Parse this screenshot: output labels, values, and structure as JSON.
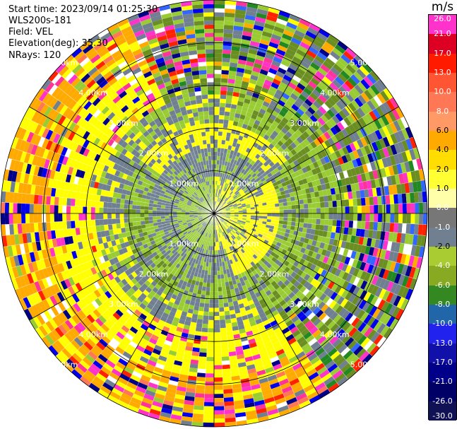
{
  "header": {
    "start_time": "Start time: 2023/09/14 01:25:30",
    "instrument": "WLS200s-181",
    "field": "Field: VEL",
    "elevation": "Elevation(deg): 35.30",
    "nrays": "NRays: 120"
  },
  "colorbar": {
    "title": "m/s",
    "labels": [
      "26.0",
      "21.0",
      "17.0",
      "13.0",
      "10.0",
      "8.0",
      "6.0",
      "4.0",
      "2.0",
      "1.0",
      "0.0",
      "-1.0",
      "-2.0",
      "-4.0",
      "-6.0",
      "-8.0",
      "-10.0",
      "-13.0",
      "-17.0",
      "-21.0",
      "-26.0",
      "-30.0"
    ],
    "colors": [
      "#ff33cc",
      "#dd0022",
      "#ff1a00",
      "#ff5533",
      "#ff7755",
      "#ff9966",
      "#ffaa00",
      "#ffdd00",
      "#ffff33",
      "#ffffaa",
      "#777777",
      "#708090",
      "#aacc33",
      "#88aa22",
      "#338822",
      "#2266aa",
      "#2222ee",
      "#1111aa",
      "#000088",
      "#000066",
      "#111155"
    ]
  },
  "chart_data": {
    "type": "heatmap",
    "projection": "polar PPI",
    "field": "VEL",
    "units": "m/s",
    "nrays": 120,
    "elevation_deg": 35.3,
    "range_rings_km": [
      1.0,
      2.0,
      3.0,
      4.0,
      5.0
    ],
    "ring_labels": [
      "1.00km",
      "2.00km",
      "3.00km",
      "4.00km",
      "5.00km"
    ],
    "spokes_deg": [
      0,
      30,
      60,
      90,
      120,
      150,
      180,
      210,
      240,
      270,
      300,
      330
    ],
    "color_levels": [
      26.0,
      21.0,
      17.0,
      13.0,
      10.0,
      8.0,
      6.0,
      4.0,
      2.0,
      1.0,
      0.0,
      -1.0,
      -2.0,
      -4.0,
      -6.0,
      -8.0,
      -10.0,
      -13.0,
      -17.0,
      -21.0,
      -26.0,
      -30.0
    ]
  }
}
